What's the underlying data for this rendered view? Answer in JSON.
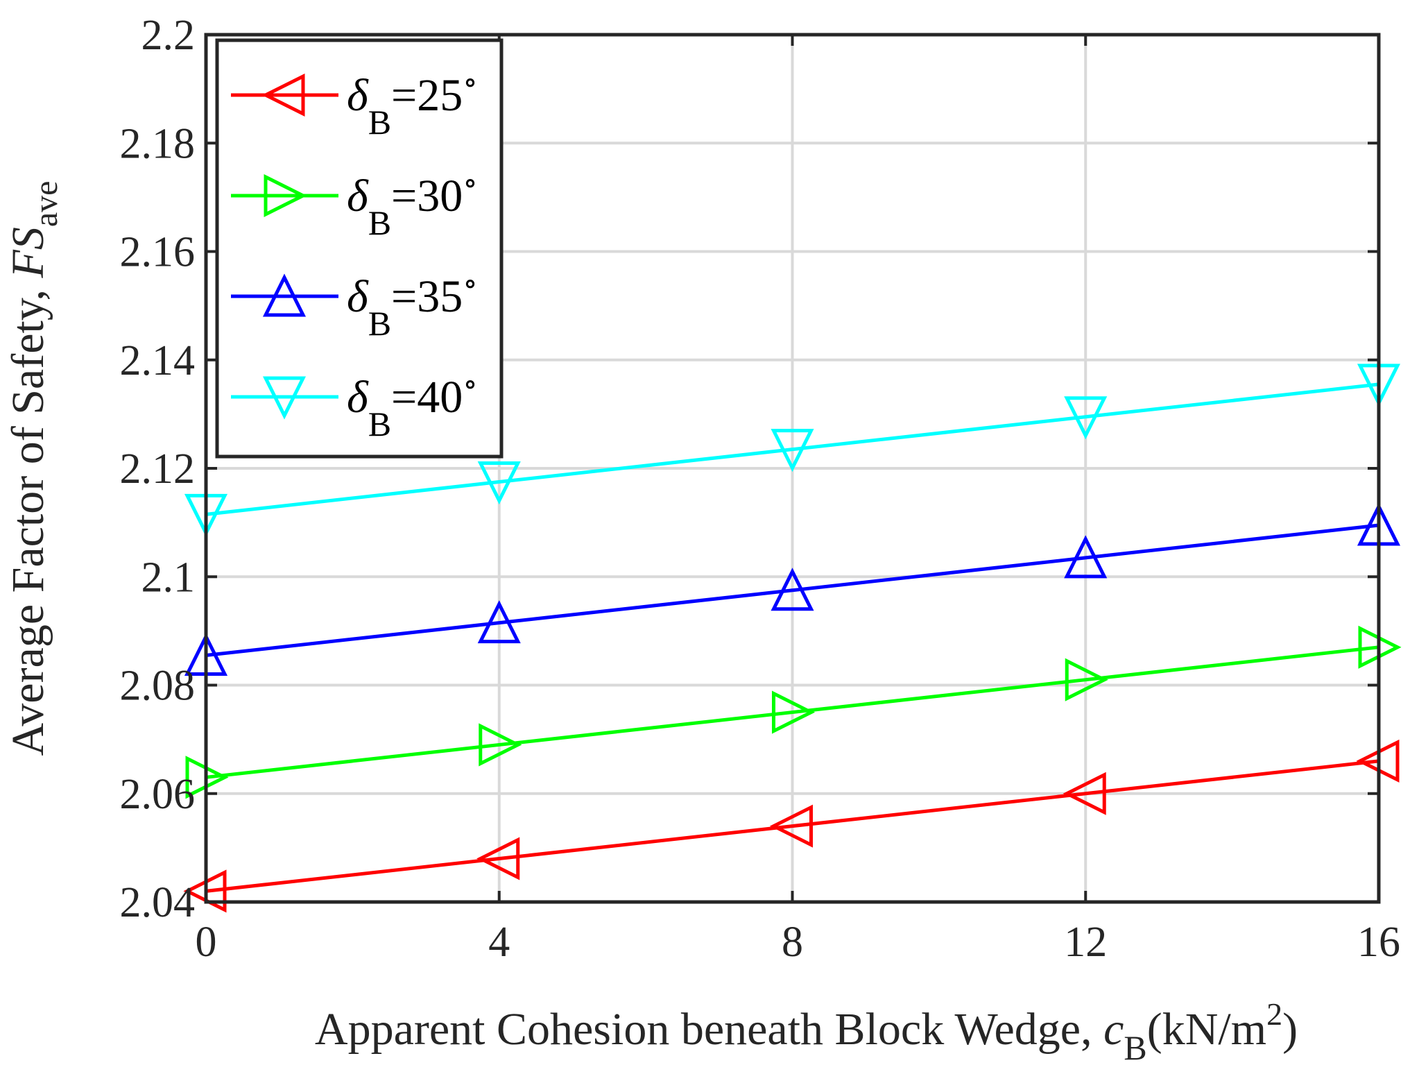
{
  "chart_data": {
    "type": "line",
    "xlabel": {
      "prefix": "Apparent Cohesion beneath Block Wedge, ",
      "var": "c",
      "sub": "B",
      "unit_open": "(kN/m",
      "unit_sup": "2",
      "unit_close": ")"
    },
    "ylabel": {
      "prefix": "Average Factor of Safety, ",
      "var": "FS",
      "sub": "ave"
    },
    "xlim": [
      0,
      16
    ],
    "ylim": [
      2.04,
      2.2
    ],
    "xticks": [
      0,
      4,
      8,
      12,
      16
    ],
    "xtick_labels": [
      "0",
      "4",
      "8",
      "12",
      "16"
    ],
    "yticks": [
      2.04,
      2.06,
      2.08,
      2.1,
      2.12,
      2.14,
      2.16,
      2.18,
      2.2
    ],
    "ytick_labels": [
      "2.04",
      "2.06",
      "2.08",
      "2.1",
      "2.12",
      "2.14",
      "2.16",
      "2.18",
      "2.2"
    ],
    "grid": true,
    "legend_position": "top-left",
    "x": [
      0,
      4,
      8,
      12,
      16
    ],
    "series": [
      {
        "name": "δB=25°",
        "symbol": "δ",
        "sub": "B",
        "value_text": "=25",
        "degree": "∘",
        "color": "#ff0000",
        "marker": "triangle-left",
        "values": [
          2.042,
          2.048,
          2.054,
          2.06,
          2.066
        ]
      },
      {
        "name": "δB=30°",
        "symbol": "δ",
        "sub": "B",
        "value_text": "=30",
        "degree": "∘",
        "color": "#00ff00",
        "marker": "triangle-right",
        "values": [
          2.063,
          2.069,
          2.075,
          2.081,
          2.087
        ]
      },
      {
        "name": "δB=35°",
        "symbol": "δ",
        "sub": "B",
        "value_text": "=35",
        "degree": "∘",
        "color": "#0000ff",
        "marker": "triangle-up",
        "values": [
          2.0855,
          2.0915,
          2.0975,
          2.1035,
          2.1095
        ]
      },
      {
        "name": "δB=40°",
        "symbol": "δ",
        "sub": "B",
        "value_text": "=40",
        "degree": "∘",
        "color": "#00ffff",
        "marker": "triangle-down",
        "values": [
          2.1115,
          2.1175,
          2.1235,
          2.1295,
          2.1355
        ]
      }
    ]
  }
}
